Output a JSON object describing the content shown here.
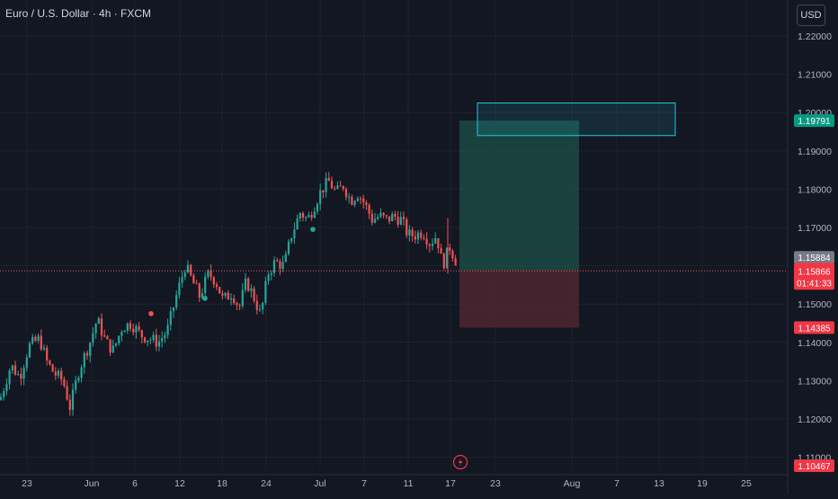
{
  "header": {
    "symbol_title": "Euro / U.S. Dollar · 4h · FXCM",
    "currency_button": "USD"
  },
  "colors": {
    "background": "#131722",
    "bull": "#26a69a",
    "bear": "#ef5350",
    "grid": "#1e222d",
    "profit_zone": "#1b4a44",
    "loss_zone": "#4a2530",
    "target_box": "#26c6da"
  },
  "chart_data": {
    "type": "candlestick",
    "y_ticks": [
      "1.22000",
      "1.21000",
      "1.20000",
      "1.19000",
      "1.18000",
      "1.17000",
      "1.16000",
      "1.15000",
      "1.14000",
      "1.13000",
      "1.12000",
      "1.11000"
    ],
    "x_ticks": [
      "23",
      "Jun",
      "6",
      "12",
      "18",
      "24",
      "Jul",
      "7",
      "11",
      "17",
      "23",
      "Aug",
      "7",
      "13",
      "19",
      "25"
    ],
    "ylim": [
      1.108,
      1.224
    ],
    "last_price": "1.15866",
    "countdown": "01:41:33",
    "price_labels": {
      "target": "1.19791",
      "entry_zone_top": "1.15884",
      "stop": "1.14385",
      "low_marker": "1.10467"
    },
    "long_position": {
      "entry": 1.15884,
      "target": 1.19791,
      "stop": 1.14385
    },
    "target_box": {
      "top": 1.2025,
      "bottom": 1.194
    },
    "path_points": [
      [
        0,
        1.125
      ],
      [
        12,
        1.134
      ],
      [
        22,
        1.131
      ],
      [
        32,
        1.139
      ],
      [
        44,
        1.141
      ],
      [
        52,
        1.135
      ],
      [
        60,
        1.132
      ],
      [
        70,
        1.13
      ],
      [
        78,
        1.123
      ],
      [
        88,
        1.133
      ],
      [
        100,
        1.14
      ],
      [
        108,
        1.146
      ],
      [
        118,
        1.14
      ],
      [
        126,
        1.138
      ],
      [
        136,
        1.144
      ],
      [
        146,
        1.145
      ],
      [
        156,
        1.142
      ],
      [
        166,
        1.141
      ],
      [
        176,
        1.14
      ],
      [
        186,
        1.143
      ],
      [
        196,
        1.152
      ],
      [
        206,
        1.16
      ],
      [
        214,
        1.156
      ],
      [
        222,
        1.152
      ],
      [
        232,
        1.158
      ],
      [
        240,
        1.156
      ],
      [
        248,
        1.151
      ],
      [
        258,
        1.153
      ],
      [
        266,
        1.149
      ],
      [
        274,
        1.156
      ],
      [
        282,
        1.152
      ],
      [
        290,
        1.147
      ],
      [
        298,
        1.158
      ],
      [
        306,
        1.161
      ],
      [
        316,
        1.16
      ],
      [
        324,
        1.168
      ],
      [
        334,
        1.174
      ],
      [
        342,
        1.172
      ],
      [
        350,
        1.176
      ],
      [
        358,
        1.18
      ],
      [
        366,
        1.182
      ],
      [
        374,
        1.179
      ],
      [
        382,
        1.181
      ],
      [
        390,
        1.177
      ],
      [
        398,
        1.179
      ],
      [
        406,
        1.176
      ],
      [
        414,
        1.172
      ],
      [
        422,
        1.173
      ],
      [
        430,
        1.172
      ],
      [
        438,
        1.173
      ],
      [
        446,
        1.172
      ],
      [
        454,
        1.168
      ],
      [
        462,
        1.168
      ],
      [
        470,
        1.169
      ],
      [
        478,
        1.166
      ],
      [
        486,
        1.168
      ],
      [
        490,
        1.162
      ],
      [
        494,
        1.161
      ],
      [
        500,
        1.165
      ],
      [
        506,
        1.162
      ],
      [
        510,
        1.1587
      ]
    ],
    "markers": [
      {
        "x": 168,
        "price": 1.1475,
        "type": "bear"
      },
      {
        "x": 228,
        "price": 1.1515,
        "type": "bull"
      },
      {
        "x": 348,
        "price": 1.1695,
        "type": "bull"
      }
    ]
  }
}
